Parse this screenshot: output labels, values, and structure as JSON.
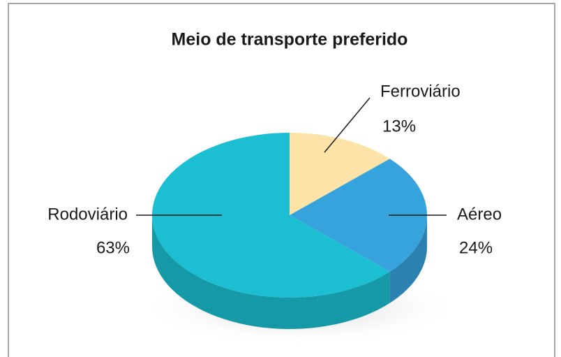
{
  "chart_data": {
    "type": "pie3d",
    "title": "Meio de transporte preferido",
    "categories": [
      "Ferroviário",
      "Aéreo",
      "Rodoviário"
    ],
    "values": [
      13,
      24,
      63
    ],
    "value_labels": [
      "13%",
      "24%",
      "63%"
    ],
    "colors": [
      "#fde3a8",
      "#36a3dc",
      "#1bbfd1"
    ]
  }
}
